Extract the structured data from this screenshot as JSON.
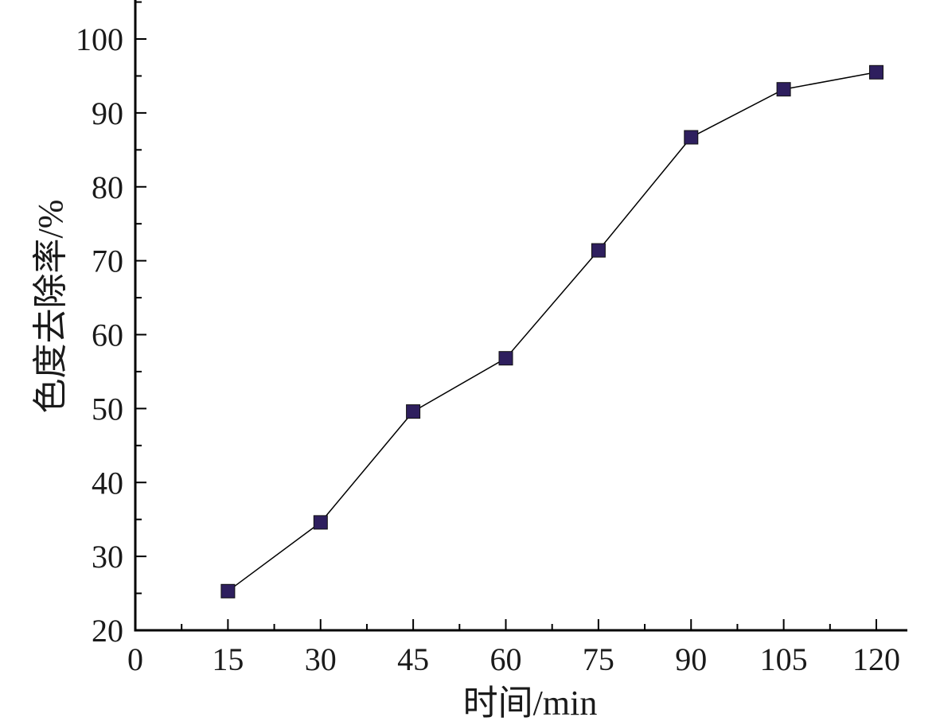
{
  "chart_data": {
    "type": "line",
    "title": "",
    "xlabel": "时间/min",
    "ylabel": "色度去除率/%",
    "x": [
      15,
      30,
      45,
      60,
      75,
      90,
      105,
      120
    ],
    "series": [
      {
        "values": [
          25.3,
          34.6,
          49.6,
          56.8,
          71.4,
          86.7,
          93.2,
          95.5
        ]
      }
    ],
    "xlim": [
      0,
      125
    ],
    "ylim": [
      20,
      105
    ],
    "xticks": [
      0,
      15,
      30,
      45,
      60,
      75,
      90,
      105,
      120
    ],
    "yticks": [
      20,
      30,
      40,
      50,
      60,
      70,
      80,
      90,
      100
    ],
    "grid": false,
    "legend": "none",
    "marker": "square",
    "line_color": "#000000",
    "marker_color": "#2e1f5e"
  }
}
